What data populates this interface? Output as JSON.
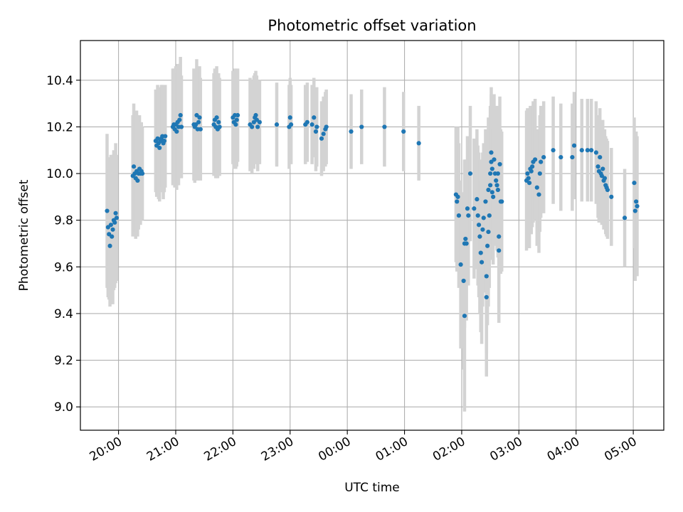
{
  "chart_data": {
    "type": "scatter",
    "title": "Photometric offset variation",
    "xlabel": "UTC time",
    "ylabel": "Photometric offset",
    "xlim": [
      "19:20",
      "05:32"
    ],
    "ylim": [
      8.9,
      10.57
    ],
    "x_ticks": [
      "20:00",
      "21:00",
      "22:00",
      "23:00",
      "00:00",
      "01:00",
      "02:00",
      "03:00",
      "04:00",
      "05:00"
    ],
    "y_ticks": [
      "9.0",
      "9.2",
      "9.4",
      "9.6",
      "9.8",
      "10.0",
      "10.2",
      "10.4"
    ],
    "grid": true,
    "colors": {
      "points": "#1f77b4",
      "error_bars": "#d3d3d3",
      "grid": "#b0b0b0"
    },
    "series": [
      {
        "error_bars": true,
        "points": [
          {
            "x": "19:48",
            "y": 9.84,
            "err": 0.33
          },
          {
            "x": "19:49",
            "y": 9.77,
            "err": 0.3
          },
          {
            "x": "19:50",
            "y": 9.74,
            "err": 0.28
          },
          {
            "x": "19:51",
            "y": 9.69,
            "err": 0.26
          },
          {
            "x": "19:52",
            "y": 9.78,
            "err": 0.3
          },
          {
            "x": "19:53",
            "y": 9.73,
            "err": 0.29
          },
          {
            "x": "19:54",
            "y": 9.76,
            "err": 0.32
          },
          {
            "x": "19:55",
            "y": 9.8,
            "err": 0.3
          },
          {
            "x": "19:56",
            "y": 9.79,
            "err": 0.28
          },
          {
            "x": "19:57",
            "y": 9.83,
            "err": 0.3
          },
          {
            "x": "19:58",
            "y": 9.81,
            "err": 0.27
          },
          {
            "x": "20:15",
            "y": 9.99,
            "err": 0.26
          },
          {
            "x": "20:16",
            "y": 10.03,
            "err": 0.27
          },
          {
            "x": "20:17",
            "y": 10.0,
            "err": 0.25
          },
          {
            "x": "20:18",
            "y": 9.98,
            "err": 0.26
          },
          {
            "x": "20:19",
            "y": 10.01,
            "err": 0.26
          },
          {
            "x": "20:20",
            "y": 9.97,
            "err": 0.24
          },
          {
            "x": "20:21",
            "y": 10.0,
            "err": 0.24
          },
          {
            "x": "20:22",
            "y": 10.02,
            "err": 0.23
          },
          {
            "x": "20:23",
            "y": 10.0,
            "err": 0.22
          },
          {
            "x": "20:24",
            "y": 10.01,
            "err": 0.21
          },
          {
            "x": "20:25",
            "y": 10.0,
            "err": 0.2
          },
          {
            "x": "20:39",
            "y": 10.14,
            "err": 0.22
          },
          {
            "x": "20:40",
            "y": 10.12,
            "err": 0.22
          },
          {
            "x": "20:41",
            "y": 10.15,
            "err": 0.23
          },
          {
            "x": "20:42",
            "y": 10.13,
            "err": 0.24
          },
          {
            "x": "20:43",
            "y": 10.11,
            "err": 0.23
          },
          {
            "x": "20:44",
            "y": 10.14,
            "err": 0.22
          },
          {
            "x": "20:45",
            "y": 10.15,
            "err": 0.23
          },
          {
            "x": "20:46",
            "y": 10.16,
            "err": 0.22
          },
          {
            "x": "20:47",
            "y": 10.13,
            "err": 0.24
          },
          {
            "x": "20:48",
            "y": 10.14,
            "err": 0.22
          },
          {
            "x": "20:49",
            "y": 10.16,
            "err": 0.22
          },
          {
            "x": "20:57",
            "y": 10.2,
            "err": 0.25
          },
          {
            "x": "20:58",
            "y": 10.21,
            "err": 0.24
          },
          {
            "x": "20:59",
            "y": 10.19,
            "err": 0.25
          },
          {
            "x": "21:00",
            "y": 10.21,
            "err": 0.25
          },
          {
            "x": "21:01",
            "y": 10.18,
            "err": 0.25
          },
          {
            "x": "21:02",
            "y": 10.22,
            "err": 0.25
          },
          {
            "x": "21:03",
            "y": 10.2,
            "err": 0.25
          },
          {
            "x": "21:04",
            "y": 10.23,
            "err": 0.24
          },
          {
            "x": "21:05",
            "y": 10.25,
            "err": 0.25
          },
          {
            "x": "21:06",
            "y": 10.2,
            "err": 0.22
          },
          {
            "x": "21:19",
            "y": 10.21,
            "err": 0.24
          },
          {
            "x": "21:20",
            "y": 10.2,
            "err": 0.24
          },
          {
            "x": "21:21",
            "y": 10.21,
            "err": 0.23
          },
          {
            "x": "21:22",
            "y": 10.25,
            "err": 0.24
          },
          {
            "x": "21:23",
            "y": 10.19,
            "err": 0.22
          },
          {
            "x": "21:24",
            "y": 10.22,
            "err": 0.22
          },
          {
            "x": "21:25",
            "y": 10.24,
            "err": 0.22
          },
          {
            "x": "21:26",
            "y": 10.19,
            "err": 0.22
          },
          {
            "x": "21:40",
            "y": 10.21,
            "err": 0.22
          },
          {
            "x": "21:41",
            "y": 10.23,
            "err": 0.22
          },
          {
            "x": "21:42",
            "y": 10.2,
            "err": 0.22
          },
          {
            "x": "21:43",
            "y": 10.24,
            "err": 0.22
          },
          {
            "x": "21:44",
            "y": 10.19,
            "err": 0.21
          },
          {
            "x": "21:45",
            "y": 10.22,
            "err": 0.21
          },
          {
            "x": "21:46",
            "y": 10.2,
            "err": 0.21
          },
          {
            "x": "22:00",
            "y": 10.24,
            "err": 0.2
          },
          {
            "x": "22:01",
            "y": 10.22,
            "err": 0.2
          },
          {
            "x": "22:02",
            "y": 10.25,
            "err": 0.2
          },
          {
            "x": "22:03",
            "y": 10.21,
            "err": 0.19
          },
          {
            "x": "22:04",
            "y": 10.23,
            "err": 0.2
          },
          {
            "x": "22:05",
            "y": 10.25,
            "err": 0.2
          },
          {
            "x": "22:18",
            "y": 10.21,
            "err": 0.2
          },
          {
            "x": "22:20",
            "y": 10.2,
            "err": 0.2
          },
          {
            "x": "22:22",
            "y": 10.22,
            "err": 0.2
          },
          {
            "x": "22:23",
            "y": 10.24,
            "err": 0.19
          },
          {
            "x": "22:24",
            "y": 10.25,
            "err": 0.19
          },
          {
            "x": "22:25",
            "y": 10.23,
            "err": 0.19
          },
          {
            "x": "22:26",
            "y": 10.2,
            "err": 0.19
          },
          {
            "x": "22:28",
            "y": 10.22,
            "err": 0.18
          },
          {
            "x": "22:46",
            "y": 10.21,
            "err": 0.18
          },
          {
            "x": "22:59",
            "y": 10.2,
            "err": 0.18
          },
          {
            "x": "23:00",
            "y": 10.24,
            "err": 0.17
          },
          {
            "x": "23:01",
            "y": 10.21,
            "err": 0.17
          },
          {
            "x": "23:16",
            "y": 10.21,
            "err": 0.17
          },
          {
            "x": "23:18",
            "y": 10.22,
            "err": 0.17
          },
          {
            "x": "23:23",
            "y": 10.21,
            "err": 0.17
          },
          {
            "x": "23:25",
            "y": 10.24,
            "err": 0.17
          },
          {
            "x": "23:27",
            "y": 10.18,
            "err": 0.17
          },
          {
            "x": "23:28",
            "y": 10.2,
            "err": 0.17
          },
          {
            "x": "23:33",
            "y": 10.15,
            "err": 0.16
          },
          {
            "x": "23:35",
            "y": 10.17,
            "err": 0.16
          },
          {
            "x": "23:37",
            "y": 10.19,
            "err": 0.16
          },
          {
            "x": "23:38",
            "y": 10.2,
            "err": 0.16
          },
          {
            "x": "00:04",
            "y": 10.18,
            "err": 0.16
          },
          {
            "x": "00:15",
            "y": 10.2,
            "err": 0.16
          },
          {
            "x": "00:39",
            "y": 10.2,
            "err": 0.17
          },
          {
            "x": "00:59",
            "y": 10.18,
            "err": 0.17
          },
          {
            "x": "01:15",
            "y": 10.13,
            "err": 0.16
          },
          {
            "x": "01:54",
            "y": 9.91,
            "err": 0.29
          },
          {
            "x": "01:55",
            "y": 9.88,
            "err": 0.3
          },
          {
            "x": "01:56",
            "y": 9.9,
            "err": 0.3
          },
          {
            "x": "01:57",
            "y": 9.82,
            "err": 0.31
          },
          {
            "x": "01:59",
            "y": 9.61,
            "err": 0.36
          },
          {
            "x": "02:02",
            "y": 9.54,
            "err": 0.38
          },
          {
            "x": "02:03",
            "y": 9.39,
            "err": 0.41
          },
          {
            "x": "02:03",
            "y": 9.7,
            "err": 0.36
          },
          {
            "x": "02:04",
            "y": 9.72,
            "err": 0.34
          },
          {
            "x": "02:05",
            "y": 9.7,
            "err": 0.33
          },
          {
            "x": "02:06",
            "y": 9.85,
            "err": 0.31
          },
          {
            "x": "02:07",
            "y": 9.82,
            "err": 0.3
          },
          {
            "x": "02:09",
            "y": 10.0,
            "err": 0.29
          },
          {
            "x": "02:13",
            "y": 9.85,
            "err": 0.3
          },
          {
            "x": "02:16",
            "y": 9.89,
            "err": 0.3
          },
          {
            "x": "02:17",
            "y": 9.82,
            "err": 0.3
          },
          {
            "x": "02:18",
            "y": 9.78,
            "err": 0.31
          },
          {
            "x": "02:19",
            "y": 9.73,
            "err": 0.33
          },
          {
            "x": "02:20",
            "y": 9.66,
            "err": 0.34
          },
          {
            "x": "02:21",
            "y": 9.62,
            "err": 0.35
          },
          {
            "x": "02:22",
            "y": 9.76,
            "err": 0.33
          },
          {
            "x": "02:23",
            "y": 9.81,
            "err": 0.32
          },
          {
            "x": "02:25",
            "y": 9.88,
            "err": 0.31
          },
          {
            "x": "02:26",
            "y": 9.47,
            "err": 0.34
          },
          {
            "x": "02:26",
            "y": 9.56,
            "err": 0.33
          },
          {
            "x": "02:27",
            "y": 9.69,
            "err": 0.34
          },
          {
            "x": "02:28",
            "y": 9.93,
            "err": 0.31
          },
          {
            "x": "02:28",
            "y": 9.75,
            "err": 0.32
          },
          {
            "x": "02:29",
            "y": 9.82,
            "err": 0.31
          },
          {
            "x": "02:30",
            "y": 10.0,
            "err": 0.29
          },
          {
            "x": "02:30",
            "y": 9.95,
            "err": 0.3
          },
          {
            "x": "02:31",
            "y": 10.09,
            "err": 0.28
          },
          {
            "x": "02:31",
            "y": 10.05,
            "err": 0.29
          },
          {
            "x": "02:32",
            "y": 10.02,
            "err": 0.28
          },
          {
            "x": "02:32",
            "y": 9.92,
            "err": 0.29
          },
          {
            "x": "02:33",
            "y": 9.9,
            "err": 0.29
          },
          {
            "x": "02:34",
            "y": 10.06,
            "err": 0.28
          },
          {
            "x": "02:35",
            "y": 10.0,
            "err": 0.29
          },
          {
            "x": "02:36",
            "y": 9.97,
            "err": 0.28
          },
          {
            "x": "02:37",
            "y": 9.95,
            "err": 0.28
          },
          {
            "x": "02:38",
            "y": 10.0,
            "err": 0.29
          },
          {
            "x": "02:38",
            "y": 9.93,
            "err": 0.29
          },
          {
            "x": "02:39",
            "y": 9.67,
            "err": 0.31
          },
          {
            "x": "02:39",
            "y": 9.73,
            "err": 0.3
          },
          {
            "x": "02:40",
            "y": 10.04,
            "err": 0.29
          },
          {
            "x": "02:41",
            "y": 9.88,
            "err": 0.31
          },
          {
            "x": "02:42",
            "y": 9.88,
            "err": 0.3
          },
          {
            "x": "03:08",
            "y": 9.97,
            "err": 0.3
          },
          {
            "x": "03:09",
            "y": 10.0,
            "err": 0.28
          },
          {
            "x": "03:10",
            "y": 9.98,
            "err": 0.28
          },
          {
            "x": "03:11",
            "y": 9.96,
            "err": 0.28
          },
          {
            "x": "03:12",
            "y": 10.02,
            "err": 0.27
          },
          {
            "x": "03:13",
            "y": 10.01,
            "err": 0.27
          },
          {
            "x": "03:14",
            "y": 10.03,
            "err": 0.26
          },
          {
            "x": "03:15",
            "y": 10.05,
            "err": 0.26
          },
          {
            "x": "03:17",
            "y": 10.06,
            "err": 0.26
          },
          {
            "x": "03:19",
            "y": 9.94,
            "err": 0.25
          },
          {
            "x": "03:21",
            "y": 9.91,
            "err": 0.25
          },
          {
            "x": "03:22",
            "y": 10.0,
            "err": 0.25
          },
          {
            "x": "03:23",
            "y": 10.05,
            "err": 0.24
          },
          {
            "x": "03:26",
            "y": 10.07,
            "err": 0.24
          },
          {
            "x": "03:36",
            "y": 10.1,
            "err": 0.23
          },
          {
            "x": "03:44",
            "y": 10.07,
            "err": 0.23
          },
          {
            "x": "03:56",
            "y": 10.07,
            "err": 0.23
          },
          {
            "x": "03:58",
            "y": 10.12,
            "err": 0.23
          },
          {
            "x": "04:06",
            "y": 10.1,
            "err": 0.22
          },
          {
            "x": "04:12",
            "y": 10.1,
            "err": 0.22
          },
          {
            "x": "04:16",
            "y": 10.1,
            "err": 0.22
          },
          {
            "x": "04:21",
            "y": 10.09,
            "err": 0.22
          },
          {
            "x": "04:23",
            "y": 10.03,
            "err": 0.22
          },
          {
            "x": "04:24",
            "y": 10.01,
            "err": 0.22
          },
          {
            "x": "04:25",
            "y": 10.07,
            "err": 0.21
          },
          {
            "x": "04:26",
            "y": 10.0,
            "err": 0.21
          },
          {
            "x": "04:27",
            "y": 9.99,
            "err": 0.21
          },
          {
            "x": "04:28",
            "y": 10.02,
            "err": 0.21
          },
          {
            "x": "04:29",
            "y": 9.97,
            "err": 0.21
          },
          {
            "x": "04:30",
            "y": 9.98,
            "err": 0.21
          },
          {
            "x": "04:31",
            "y": 9.95,
            "err": 0.21
          },
          {
            "x": "04:32",
            "y": 9.94,
            "err": 0.21
          },
          {
            "x": "04:33",
            "y": 9.93,
            "err": 0.21
          },
          {
            "x": "04:37",
            "y": 9.9,
            "err": 0.21
          },
          {
            "x": "04:51",
            "y": 9.81,
            "err": 0.21
          },
          {
            "x": "05:01",
            "y": 9.96,
            "err": 0.28
          },
          {
            "x": "05:02",
            "y": 9.84,
            "err": 0.3
          },
          {
            "x": "05:03",
            "y": 9.88,
            "err": 0.3
          },
          {
            "x": "05:04",
            "y": 9.86,
            "err": 0.3
          }
        ]
      }
    ]
  }
}
